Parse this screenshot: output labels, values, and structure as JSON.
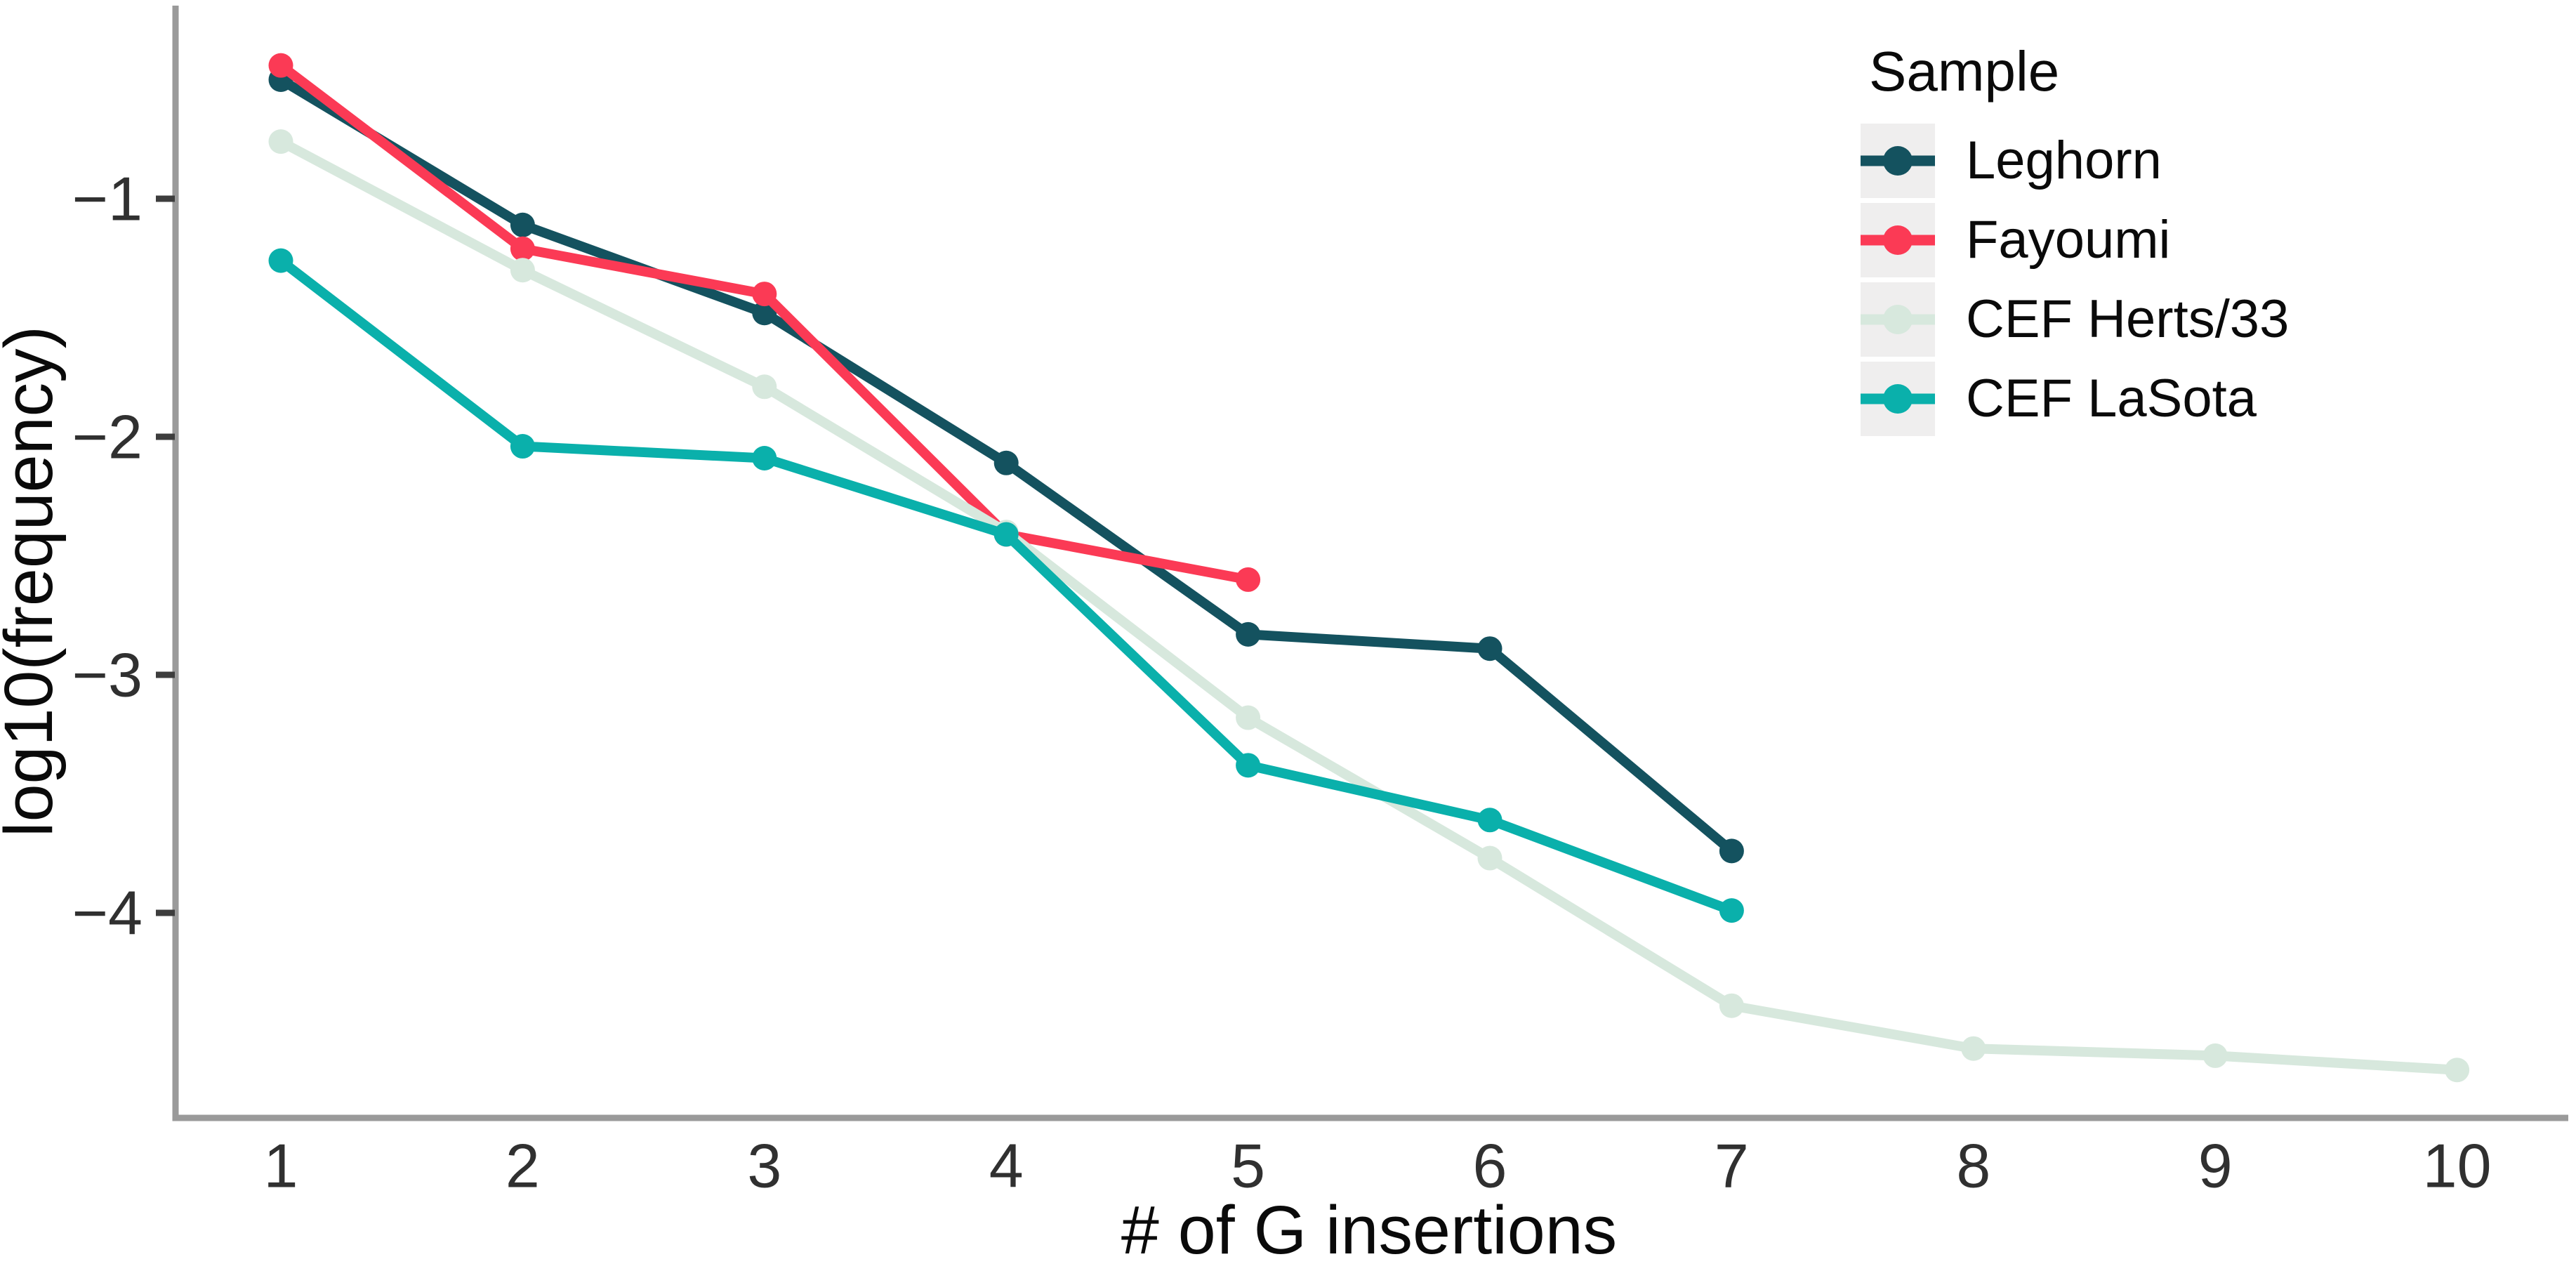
{
  "chart_data": {
    "type": "line",
    "title": "",
    "xlabel": "# of G insertions",
    "ylabel": "log10(frequency)",
    "x_ticks": [
      1,
      2,
      3,
      4,
      5,
      6,
      7,
      8,
      9,
      10
    ],
    "y_ticks": [
      -1,
      -2,
      -3,
      -4
    ],
    "y_tick_labels": [
      "−1",
      "−2",
      "−3",
      "−4"
    ],
    "xlim": [
      0.57,
      10.47
    ],
    "ylim": [
      -4.86,
      -0.19
    ],
    "grid": false,
    "legend": {
      "title": "Sample",
      "position": "top-right-inside"
    },
    "series": [
      {
        "name": "Leghorn",
        "color": "#14525f",
        "x": [
          1,
          2,
          3,
          4,
          5,
          6,
          7
        ],
        "y": [
          -0.5,
          -1.11,
          -1.48,
          -2.11,
          -2.83,
          -2.89,
          -3.74
        ]
      },
      {
        "name": "Fayoumi",
        "color": "#fb3a55",
        "x": [
          1,
          2,
          3,
          4,
          5
        ],
        "y": [
          -0.44,
          -1.21,
          -1.4,
          -2.41,
          -2.6
        ]
      },
      {
        "name": "CEF Herts/33",
        "color": "#d7e8dd",
        "x": [
          1,
          2,
          3,
          4,
          5,
          6,
          7,
          8,
          9,
          10
        ],
        "y": [
          -0.76,
          -1.3,
          -1.79,
          -2.4,
          -3.18,
          -3.77,
          -4.39,
          -4.57,
          -4.6,
          -4.66
        ]
      },
      {
        "name": "CEF LaSota",
        "color": "#0ab0ab",
        "x": [
          1,
          2,
          3,
          4,
          5,
          6,
          7
        ],
        "y": [
          -1.26,
          -2.04,
          -2.09,
          -2.41,
          -3.38,
          -3.61,
          -3.99
        ]
      }
    ]
  },
  "colors": {
    "background": "#ffffff",
    "axis_line": "#9a9a9a",
    "tick_mark": "#3d3d3d",
    "tick_label": "#303030",
    "axis_title": "#0a0a0a",
    "legend_key_bg": "#efeeee",
    "legend_text": "#0a0a0a"
  }
}
